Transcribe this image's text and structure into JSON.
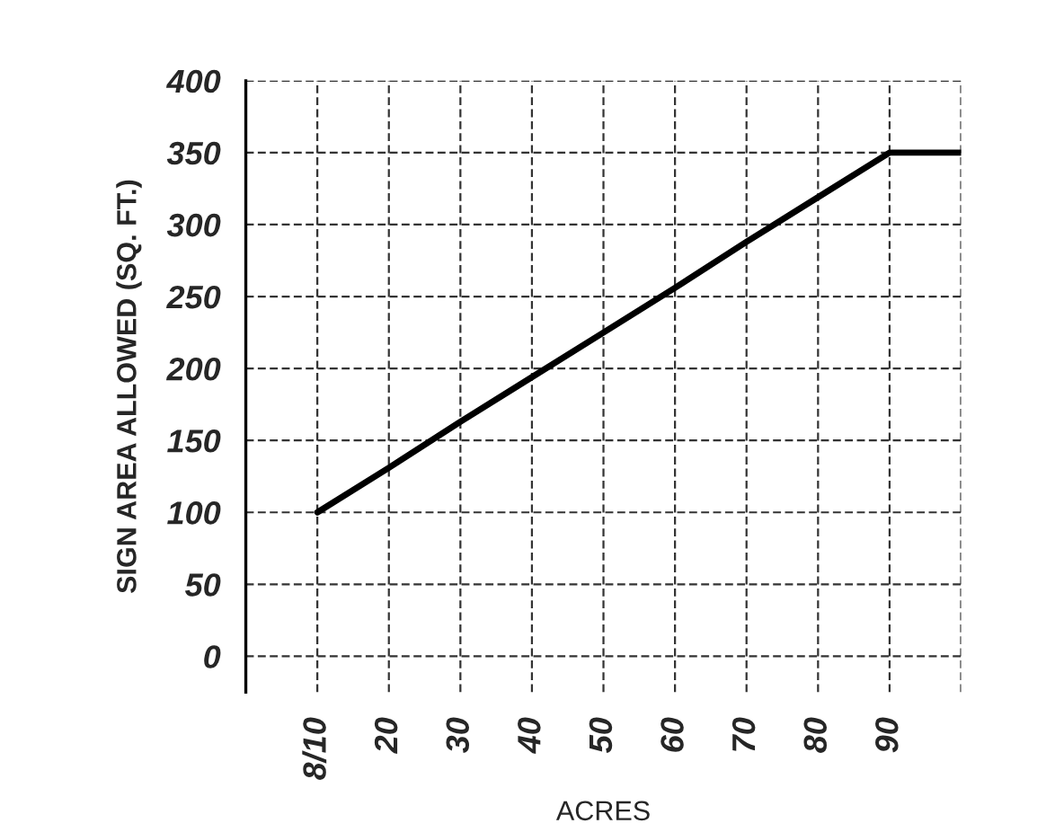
{
  "chart_data": {
    "type": "line",
    "xlabel": "ACRES",
    "ylabel": "SIGN AREA ALLOWED (SQ. FT.)",
    "categories": [
      "8/10",
      "20",
      "30",
      "40",
      "50",
      "60",
      "70",
      "80",
      "90",
      null
    ],
    "series": [
      {
        "color": "#000000",
        "values": [
          100,
          131,
          163,
          194,
          225,
          256,
          288,
          319,
          350,
          350
        ]
      }
    ],
    "ylim": [
      -25,
      400
    ],
    "yticks": [
      0,
      50,
      100,
      150,
      200,
      250,
      300,
      350,
      400
    ],
    "grid": true,
    "line_style": "solid"
  }
}
